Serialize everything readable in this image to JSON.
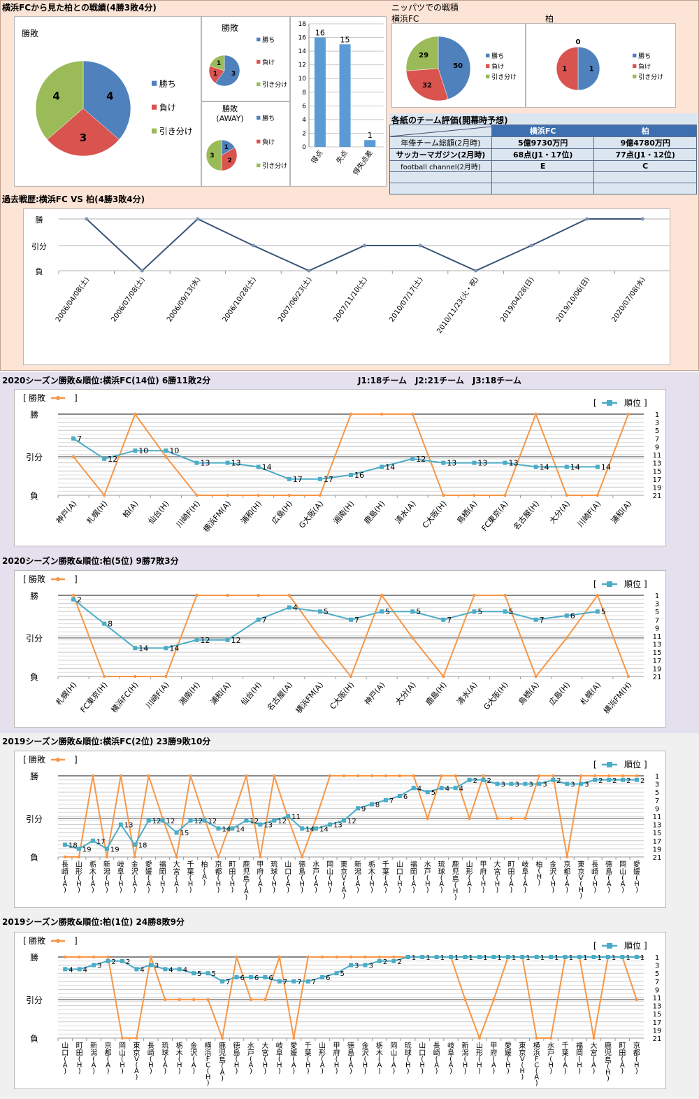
{
  "header": {
    "main_title": "横浜FCから見た柏との戦績(4勝3敗4分)",
    "nippatsu_title": "ニッパツでの戦積",
    "nippatsu_left_label": "横浜FC",
    "nippatsu_right_label": "柏",
    "evaluation_title": "各紙のチーム評価(開幕時予想)",
    "history_title": "過去戦歴:横浜FC VS 柏(4勝3敗4分)",
    "season2020_yfc_title": "2020シーズン勝敗&順位:横浜FC(14位) 6勝11敗2分",
    "league_info": "J1:18チーム　J2:21チーム　J3:18チーム",
    "season2020_kashiwa_title": "2020シーズン勝敗&順位:柏(5位) 9勝7敗3分",
    "season2019_yfc_title": "2019シーズン勝敗&順位:横浜FC(2位) 23勝9敗10分",
    "season2019_kashiwa_title": "2019シーズン勝敗&順位:柏(1位) 24勝8敗9分"
  },
  "colors": {
    "win": "#4f81bd",
    "loss": "#d9534f",
    "draw": "#9bbb59",
    "result_line": "#f79646",
    "rank_line": "#4bacc6",
    "history_line": "#3a5478",
    "table_header": "#3e6fb0"
  },
  "legend": {
    "win": "勝ち",
    "loss": "負け",
    "draw": "引き分け",
    "result_series": "勝敗",
    "rank_series": "順位"
  },
  "evaluation_table": {
    "columns": [
      "",
      "横浜FC",
      "柏"
    ],
    "rows": [
      [
        "年俸チーム総額(2月時)",
        "5億9730万円",
        "9億4780万円"
      ],
      [
        "サッカーマガジン(2月時)",
        "68点(J1・17位)",
        "77点(J1・12位)"
      ],
      [
        "football channel(2月時)",
        "E",
        "C"
      ],
      [
        "",
        "",
        ""
      ],
      [
        "",
        "",
        ""
      ]
    ]
  },
  "chart_data": [
    {
      "id": "overall_pie",
      "type": "pie",
      "title": "勝敗",
      "labels": [
        "勝ち",
        "負け",
        "引き分け"
      ],
      "values": [
        4,
        3,
        4
      ],
      "legend": "right"
    },
    {
      "id": "home_pie",
      "type": "pie",
      "title": "勝敗",
      "labels": [
        "勝ち",
        "負け",
        "引き分け"
      ],
      "values": [
        3,
        1,
        1
      ],
      "legend": "right"
    },
    {
      "id": "away_pie",
      "type": "pie",
      "title": "勝敗\n(AWAY)",
      "title_lines": [
        "勝敗",
        "(AWAY)"
      ],
      "labels": [
        "勝ち",
        "負け",
        "引き分け"
      ],
      "values": [
        1,
        2,
        3
      ],
      "legend": "right"
    },
    {
      "id": "goals_bar",
      "type": "bar",
      "categories": [
        "得点",
        "失点",
        "得失点差"
      ],
      "values": [
        16,
        15,
        1
      ],
      "ylim": [
        0,
        18
      ],
      "yticks": [
        0,
        2,
        4,
        6,
        8,
        10,
        12,
        14,
        16,
        18
      ],
      "grid": true
    },
    {
      "id": "nippatsu_yfc_pie",
      "type": "pie",
      "title": "横浜FC",
      "labels": [
        "勝ち",
        "負け",
        "引き分け"
      ],
      "values": [
        50,
        32,
        29
      ],
      "legend": "right"
    },
    {
      "id": "nippatsu_kashiwa_pie",
      "type": "pie",
      "title": "柏",
      "labels": [
        "勝ち",
        "負け",
        "引き分け"
      ],
      "values": [
        1,
        1,
        0
      ],
      "legend": "right"
    },
    {
      "id": "history_line",
      "type": "line",
      "title": "過去戦歴:横浜FC VS 柏(4勝3敗4分)",
      "ytick_labels": [
        "負",
        "引分",
        "勝"
      ],
      "categories": [
        "2006/04/08(土)",
        "2006/07/08(土)",
        "2006/09/13(水)",
        "2006/10/28(土)",
        "2007/06/23(土)",
        "2007/11/10(土)",
        "2010/07/17(土)",
        "2010/11/23(火・祝)",
        "2019/04/28(日)",
        "2019/10/06(日)",
        "2020/07/08(水)"
      ],
      "results": [
        "勝",
        "負",
        "勝",
        "引分",
        "負",
        "引分",
        "引分",
        "負",
        "引分",
        "勝",
        "勝"
      ],
      "grid": true
    },
    {
      "id": "season2020_yfc",
      "type": "line",
      "title": "2020シーズン勝敗&順位:横浜FC(14位) 6勝11敗2分",
      "ytick_labels_left": [
        "負",
        "引分",
        "勝"
      ],
      "yticks_right": [
        1,
        3,
        5,
        7,
        9,
        11,
        13,
        15,
        17,
        19,
        21
      ],
      "categories": [
        "神戸(A)",
        "札幌(H)",
        "柏(A)",
        "仙台(H)",
        "川崎F(H)",
        "横浜FM(A)",
        "浦和(H)",
        "広島(H)",
        "G大阪(A)",
        "湘南(H)",
        "鹿島(H)",
        "清水(A)",
        "C大阪(H)",
        "鳥栖(A)",
        "FC東京(A)",
        "名古屋(H)",
        "大分(A)",
        "川崎F(A)",
        "浦和(A)"
      ],
      "series": [
        {
          "name": "勝敗",
          "values": [
            "引分",
            "負",
            "勝",
            "引分",
            "負",
            "負",
            "負",
            "負",
            "負",
            "勝",
            "勝",
            "勝",
            "負",
            "負",
            "負",
            "勝",
            "負",
            "負",
            "勝"
          ]
        },
        {
          "name": "順位",
          "values": [
            7,
            12,
            10,
            10,
            13,
            13,
            14,
            17,
            17,
            16,
            14,
            12,
            13,
            13,
            13,
            14,
            14,
            14,
            null
          ]
        }
      ],
      "rank_ylim": [
        1,
        21
      ]
    },
    {
      "id": "season2020_kashiwa",
      "type": "line",
      "title": "2020シーズン勝敗&順位:柏(5位) 9勝7敗3分",
      "ytick_labels_left": [
        "負",
        "引分",
        "勝"
      ],
      "yticks_right": [
        1,
        3,
        5,
        7,
        9,
        11,
        13,
        15,
        17,
        19,
        21
      ],
      "categories": [
        "札幌(H)",
        "FC東京(H)",
        "横浜FC(H)",
        "川崎F(A)",
        "湘南(H)",
        "浦和(A)",
        "仙台(H)",
        "名古屋(A)",
        "横浜FM(A)",
        "C大阪(H)",
        "神戸(A)",
        "大分(A)",
        "鹿島(H)",
        "清水(A)",
        "G大阪(H)",
        "鳥栖(A)",
        "広島(H)",
        "札幌(A)",
        "横浜FM(H)"
      ],
      "series": [
        {
          "name": "勝敗",
          "values": [
            "勝",
            "負",
            "負",
            "負",
            "勝",
            "勝",
            "勝",
            "勝",
            "引分",
            "負",
            "勝",
            "引分",
            "負",
            "勝",
            "勝",
            "負",
            "引分",
            "勝",
            "負"
          ]
        },
        {
          "name": "順位",
          "values": [
            2,
            8,
            14,
            14,
            12,
            12,
            7,
            4,
            5,
            7,
            5,
            5,
            7,
            5,
            5,
            7,
            6,
            5,
            null
          ]
        }
      ],
      "rank_ylim": [
        1,
        21
      ]
    },
    {
      "id": "season2019_yfc",
      "type": "line",
      "title": "2019シーズン勝敗&順位:横浜FC(2位) 23勝9敗10分",
      "ytick_labels_left": [
        "負",
        "引分",
        "勝"
      ],
      "yticks_right": [
        1,
        3,
        5,
        7,
        9,
        11,
        13,
        15,
        17,
        19,
        21
      ],
      "categories": [
        "長崎(A)",
        "山形(H)",
        "栃木(A)",
        "新潟(H)",
        "岐阜(H)",
        "金沢(A)",
        "愛媛(A)",
        "福岡(H)",
        "大宮(A)",
        "千葉(H)",
        "柏(A)",
        "京都(H)",
        "町田(H)",
        "鹿児島(A)",
        "甲府(A)",
        "琉球(H)",
        "山口(A)",
        "徳島(H)",
        "水戸(A)",
        "岡山(H)",
        "東京V(A)",
        "新潟(A)",
        "栃木(H)",
        "千葉(A)",
        "山口(H)",
        "福岡(A)",
        "水戸(H)",
        "琉球(A)",
        "鹿児島(H)",
        "山形(A)",
        "甲府(H)",
        "大宮(H)",
        "町田(A)",
        "岐阜(A)",
        "柏(H)",
        "金沢(H)",
        "京都(A)",
        "東京V(H)",
        "長崎(H)",
        "徳島(A)",
        "岡山(A)",
        "愛媛(H)"
      ],
      "series": [
        {
          "name": "勝敗",
          "values": [
            "負",
            "負",
            "勝",
            "負",
            "勝",
            "負",
            "勝",
            "引分",
            "負",
            "勝",
            "引分",
            "負",
            "引分",
            "勝",
            "負",
            "勝",
            "引分",
            "負",
            "引分",
            "勝",
            "勝",
            "勝",
            "勝",
            "勝",
            "勝",
            "勝",
            "引分",
            "勝",
            "勝",
            "引分",
            "勝",
            "引分",
            "引分",
            "引分",
            "勝",
            "勝",
            "負",
            "勝",
            "勝",
            "勝",
            "勝",
            "勝"
          ]
        },
        {
          "name": "順位",
          "values": [
            18,
            19,
            17,
            19,
            13,
            18,
            12,
            12,
            15,
            12,
            12,
            14,
            14,
            12,
            13,
            12,
            11,
            14,
            14,
            13,
            12,
            9,
            8,
            7,
            6,
            4,
            5,
            4,
            4,
            2,
            2,
            3,
            3,
            3,
            3,
            2,
            3,
            3,
            2,
            2,
            2,
            2
          ]
        }
      ],
      "rank_ylim": [
        1,
        21
      ]
    },
    {
      "id": "season2019_kashiwa",
      "type": "line",
      "title": "2019シーズン勝敗&順位:柏(1位) 24勝8敗9分",
      "ytick_labels_left": [
        "負",
        "引分",
        "勝"
      ],
      "yticks_right": [
        1,
        3,
        5,
        7,
        9,
        11,
        13,
        15,
        17,
        19,
        21
      ],
      "categories": [
        "山口(A)",
        "町田(H)",
        "新潟(A)",
        "京都(A)",
        "岡山(H)",
        "東京V(A)",
        "長崎(H)",
        "琉球(A)",
        "栃木(H)",
        "金沢(A)",
        "横浜FC(H)",
        "鹿児島(A)",
        "徳島(H)",
        "水戸(A)",
        "大宮(H)",
        "岐阜(H)",
        "愛媛(A)",
        "千葉(H)",
        "山形(A)",
        "甲府(H)",
        "徳島(A)",
        "金沢(H)",
        "栃木(A)",
        "岡山(A)",
        "琉球(H)",
        "山口(H)",
        "長崎(A)",
        "岐阜(A)",
        "新潟(H)",
        "山形(H)",
        "甲府(A)",
        "愛媛(H)",
        "東京V(H)",
        "横浜FC(A)",
        "水戸(H)",
        "千葉(A)",
        "福岡(H)",
        "大宮(A)",
        "鹿児島(H)",
        "町田(A)",
        "京都(H)"
      ],
      "series": [
        {
          "name": "勝敗",
          "values": [
            "勝",
            "勝",
            "勝",
            "勝",
            "負",
            "負",
            "勝",
            "引分",
            "引分",
            "引分",
            "引分",
            "負",
            "勝",
            "引分",
            "引分",
            "勝",
            "負",
            "勝",
            "勝",
            "勝",
            "勝",
            "勝",
            "勝",
            "勝",
            "勝",
            "勝",
            "勝",
            "勝",
            "引分",
            "負",
            "引分",
            "勝",
            "勝",
            "負",
            "負",
            "勝",
            "勝",
            "負",
            "勝",
            "勝",
            "引分"
          ]
        },
        {
          "name": "順位",
          "values": [
            4,
            4,
            3,
            2,
            2,
            4,
            3,
            4,
            4,
            5,
            5,
            7,
            6,
            6,
            6,
            7,
            7,
            7,
            6,
            5,
            3,
            3,
            2,
            2,
            1,
            1,
            1,
            1,
            1,
            1,
            1,
            1,
            1,
            1,
            1,
            1,
            1,
            1,
            1,
            1,
            1
          ]
        }
      ],
      "rank_ylim": [
        1,
        21
      ]
    }
  ]
}
